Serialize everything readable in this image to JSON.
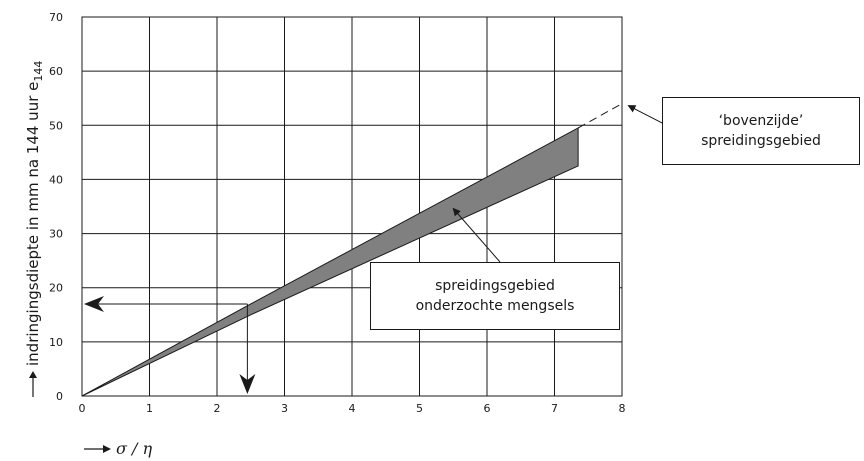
{
  "chart_data": {
    "type": "area",
    "title": "",
    "xlabel": "σ / η",
    "ylabel": "indringingsdiepte in mm na 144 uur e",
    "ylabel_subscript": "144",
    "xlim": [
      0,
      8
    ],
    "ylim": [
      0,
      70
    ],
    "x_ticks": [
      "0",
      "1",
      "2",
      "3",
      "4",
      "5",
      "6",
      "7",
      "8"
    ],
    "y_ticks": [
      "0",
      "10",
      "20",
      "30",
      "40",
      "50",
      "60",
      "70"
    ],
    "grid": true,
    "band": {
      "name": "spreidingsgebied onderzochte mengsels",
      "x": [
        0,
        2.5,
        7.35
      ],
      "upper": [
        0,
        17,
        49.5
      ],
      "lower": [
        0,
        15,
        42.5
      ],
      "color": "#808080"
    },
    "upper_extension": {
      "x": [
        7.35,
        8.0
      ],
      "y": [
        49.5,
        54
      ]
    },
    "reading_example": {
      "x": 2.45,
      "y": 17
    },
    "annotations": [
      {
        "lines": [
          "spreidingsgebied",
          "onderzochte mengsels"
        ],
        "points_to": [
          5.5,
          35
        ]
      },
      {
        "lines": [
          "‘bovenzijde’",
          "spreidingsgebied"
        ],
        "points_to": [
          8.05,
          54
        ]
      }
    ]
  }
}
